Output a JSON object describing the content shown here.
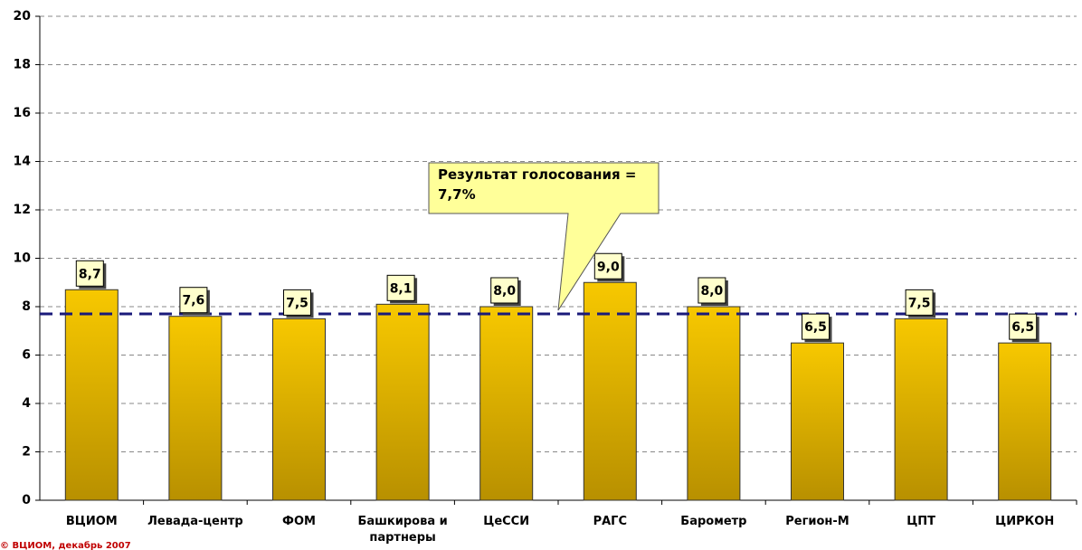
{
  "chart_data": {
    "type": "bar",
    "categories": [
      "ВЦИОМ",
      "Левада-центр",
      "ФОМ",
      "Башкирова и партнеры",
      "ЦеССИ",
      "РАГС",
      "Барометр",
      "Регион-М",
      "ЦПТ",
      "ЦИРКОН"
    ],
    "values": [
      8.7,
      7.6,
      7.5,
      8.1,
      8.0,
      9.0,
      8.0,
      6.5,
      7.5,
      6.5
    ],
    "value_labels": [
      "8,7",
      "7,6",
      "7,5",
      "8,1",
      "8,0",
      "9,0",
      "8,0",
      "6,5",
      "7,5",
      "6,5"
    ],
    "color": "#e8b800",
    "ylim": [
      0,
      20
    ],
    "yticks": [
      0,
      2,
      4,
      6,
      8,
      10,
      12,
      14,
      16,
      18,
      20
    ],
    "grid": true,
    "reference_line": {
      "value": 7.7,
      "color": "#1a1a7a",
      "annotation": "Результат голосования = 7,7%"
    },
    "source": "© ВЦИОМ, декабрь 2007"
  }
}
